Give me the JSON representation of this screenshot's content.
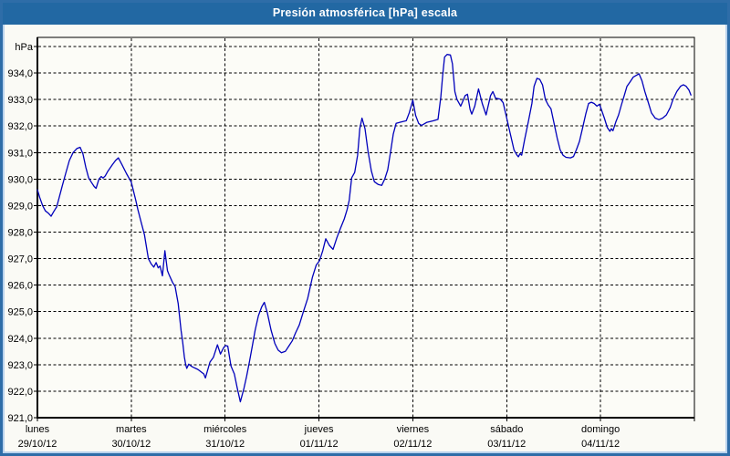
{
  "window": {
    "title": "Presión atmosférica [hPa] escala"
  },
  "colors": {
    "titlebar": "#2268a3",
    "frame": "#2e6da8",
    "lightframe": "#b9d2ec",
    "content_bg": "#fafaf5",
    "plot_bg": "#fcfcf7",
    "grid": "#000000",
    "line": "#0000bb",
    "title_text": "#ffffff",
    "axis_text": "#000000"
  },
  "chart_data": {
    "type": "line",
    "title": "Presión atmosférica [hPa] escala",
    "grid": "dashed",
    "legend": "none",
    "y_axis": {
      "unit_label": "hPa",
      "min": 921,
      "max": 935,
      "step": 1,
      "tick_labels": [
        "921,0",
        "922,0",
        "923,0",
        "924,0",
        "925,0",
        "926,0",
        "927,0",
        "928,0",
        "929,0",
        "930,0",
        "931,0",
        "932,0",
        "933,0",
        "934,0"
      ]
    },
    "x_axis": {
      "days": [
        {
          "name": "lunes",
          "date": "29/10/12"
        },
        {
          "name": "martes",
          "date": "30/10/12"
        },
        {
          "name": "miércoles",
          "date": "31/10/12"
        },
        {
          "name": "jueves",
          "date": "01/11/12"
        },
        {
          "name": "viernes",
          "date": "02/11/12"
        },
        {
          "name": "sábado",
          "date": "03/11/12"
        },
        {
          "name": "domingo",
          "date": "04/11/12"
        }
      ]
    },
    "series": [
      {
        "name": "presion_atmosferica_hPa",
        "color": "#0000bb",
        "points": [
          [
            0.0,
            929.6
          ],
          [
            0.025,
            929.3
          ],
          [
            0.055,
            929.0
          ],
          [
            0.085,
            928.8
          ],
          [
            0.115,
            928.72
          ],
          [
            0.146,
            928.6
          ],
          [
            0.175,
            928.78
          ],
          [
            0.205,
            928.95
          ],
          [
            0.235,
            929.35
          ],
          [
            0.265,
            929.75
          ],
          [
            0.3,
            930.2
          ],
          [
            0.34,
            930.7
          ],
          [
            0.38,
            931.0
          ],
          [
            0.42,
            931.15
          ],
          [
            0.455,
            931.2
          ],
          [
            0.485,
            930.95
          ],
          [
            0.515,
            930.45
          ],
          [
            0.545,
            930.05
          ],
          [
            0.575,
            929.88
          ],
          [
            0.605,
            929.72
          ],
          [
            0.625,
            929.65
          ],
          [
            0.655,
            930.0
          ],
          [
            0.68,
            930.1
          ],
          [
            0.7,
            930.04
          ],
          [
            0.722,
            930.12
          ],
          [
            0.752,
            930.3
          ],
          [
            0.8,
            930.55
          ],
          [
            0.832,
            930.7
          ],
          [
            0.862,
            930.8
          ],
          [
            0.9,
            930.55
          ],
          [
            0.95,
            930.2
          ],
          [
            1.0,
            929.88
          ],
          [
            1.048,
            929.2
          ],
          [
            1.07,
            928.85
          ],
          [
            1.1,
            928.45
          ],
          [
            1.14,
            927.9
          ],
          [
            1.182,
            927.0
          ],
          [
            1.212,
            926.8
          ],
          [
            1.24,
            926.68
          ],
          [
            1.265,
            926.85
          ],
          [
            1.287,
            926.65
          ],
          [
            1.307,
            926.72
          ],
          [
            1.332,
            926.35
          ],
          [
            1.358,
            927.3
          ],
          [
            1.385,
            926.55
          ],
          [
            1.402,
            926.4
          ],
          [
            1.44,
            926.1
          ],
          [
            1.467,
            925.95
          ],
          [
            1.5,
            925.3
          ],
          [
            1.53,
            924.3
          ],
          [
            1.548,
            923.85
          ],
          [
            1.565,
            923.3
          ],
          [
            1.58,
            923.0
          ],
          [
            1.592,
            922.86
          ],
          [
            1.612,
            923.02
          ],
          [
            1.65,
            922.92
          ],
          [
            1.71,
            922.82
          ],
          [
            1.772,
            922.65
          ],
          [
            1.79,
            922.5
          ],
          [
            1.838,
            923.1
          ],
          [
            1.875,
            923.28
          ],
          [
            1.918,
            923.75
          ],
          [
            1.95,
            923.4
          ],
          [
            1.985,
            923.65
          ],
          [
            2.005,
            923.72
          ],
          [
            2.028,
            923.7
          ],
          [
            2.062,
            922.95
          ],
          [
            2.098,
            922.65
          ],
          [
            2.13,
            922.1
          ],
          [
            2.162,
            921.6
          ],
          [
            2.2,
            922.1
          ],
          [
            2.228,
            922.55
          ],
          [
            2.258,
            923.1
          ],
          [
            2.29,
            923.7
          ],
          [
            2.32,
            924.3
          ],
          [
            2.355,
            924.85
          ],
          [
            2.39,
            925.18
          ],
          [
            2.418,
            925.35
          ],
          [
            2.45,
            924.95
          ],
          [
            2.49,
            924.3
          ],
          [
            2.53,
            923.8
          ],
          [
            2.565,
            923.55
          ],
          [
            2.6,
            923.45
          ],
          [
            2.642,
            923.5
          ],
          [
            2.682,
            923.72
          ],
          [
            2.715,
            923.9
          ],
          [
            2.75,
            924.2
          ],
          [
            2.79,
            924.5
          ],
          [
            2.832,
            924.98
          ],
          [
            2.88,
            925.5
          ],
          [
            2.93,
            926.3
          ],
          [
            2.97,
            926.75
          ],
          [
            3.005,
            926.92
          ],
          [
            3.04,
            927.3
          ],
          [
            3.072,
            927.75
          ],
          [
            3.11,
            927.5
          ],
          [
            3.15,
            927.35
          ],
          [
            3.192,
            927.8
          ],
          [
            3.23,
            928.15
          ],
          [
            3.27,
            928.5
          ],
          [
            3.3,
            928.85
          ],
          [
            3.322,
            929.2
          ],
          [
            3.348,
            930.05
          ],
          [
            3.38,
            930.25
          ],
          [
            3.412,
            930.9
          ],
          [
            3.435,
            931.9
          ],
          [
            3.458,
            932.3
          ],
          [
            3.49,
            931.9
          ],
          [
            3.522,
            931.05
          ],
          [
            3.558,
            930.3
          ],
          [
            3.59,
            929.9
          ],
          [
            3.63,
            929.8
          ],
          [
            3.668,
            929.76
          ],
          [
            3.7,
            930.0
          ],
          [
            3.732,
            930.35
          ],
          [
            3.762,
            931.0
          ],
          [
            3.792,
            931.7
          ],
          [
            3.822,
            932.1
          ],
          [
            3.87,
            932.15
          ],
          [
            3.93,
            932.2
          ],
          [
            3.962,
            932.5
          ],
          [
            4.0,
            932.98
          ],
          [
            4.03,
            932.4
          ],
          [
            4.062,
            932.1
          ],
          [
            4.092,
            932.02
          ],
          [
            4.15,
            932.14
          ],
          [
            4.22,
            932.2
          ],
          [
            4.268,
            932.25
          ],
          [
            4.298,
            933.1
          ],
          [
            4.318,
            933.9
          ],
          [
            4.338,
            934.6
          ],
          [
            4.365,
            934.7
          ],
          [
            4.4,
            934.68
          ],
          [
            4.422,
            934.35
          ],
          [
            4.448,
            933.3
          ],
          [
            4.47,
            933.0
          ],
          [
            4.51,
            932.75
          ],
          [
            4.558,
            933.15
          ],
          [
            4.582,
            933.2
          ],
          [
            4.61,
            932.62
          ],
          [
            4.628,
            932.45
          ],
          [
            4.66,
            932.75
          ],
          [
            4.7,
            933.4
          ],
          [
            4.74,
            932.85
          ],
          [
            4.78,
            932.42
          ],
          [
            4.828,
            933.15
          ],
          [
            4.852,
            933.3
          ],
          [
            4.882,
            933.05
          ],
          [
            4.93,
            933.02
          ],
          [
            4.962,
            932.88
          ],
          [
            5.0,
            932.3
          ],
          [
            5.032,
            931.8
          ],
          [
            5.078,
            931.1
          ],
          [
            5.11,
            930.9
          ],
          [
            5.125,
            930.84
          ],
          [
            5.142,
            930.96
          ],
          [
            5.16,
            930.9
          ],
          [
            5.192,
            931.5
          ],
          [
            5.23,
            932.15
          ],
          [
            5.268,
            932.85
          ],
          [
            5.292,
            933.5
          ],
          [
            5.322,
            933.8
          ],
          [
            5.352,
            933.76
          ],
          [
            5.382,
            933.55
          ],
          [
            5.412,
            933.0
          ],
          [
            5.442,
            932.8
          ],
          [
            5.472,
            932.65
          ],
          [
            5.502,
            932.15
          ],
          [
            5.538,
            931.55
          ],
          [
            5.57,
            931.1
          ],
          [
            5.6,
            930.9
          ],
          [
            5.632,
            930.82
          ],
          [
            5.68,
            930.8
          ],
          [
            5.712,
            930.85
          ],
          [
            5.742,
            931.1
          ],
          [
            5.775,
            931.42
          ],
          [
            5.81,
            931.95
          ],
          [
            5.842,
            932.45
          ],
          [
            5.872,
            932.85
          ],
          [
            5.902,
            932.9
          ],
          [
            5.932,
            932.85
          ],
          [
            5.962,
            932.75
          ],
          [
            5.988,
            932.82
          ],
          [
            6.002,
            932.7
          ],
          [
            6.04,
            932.3
          ],
          [
            6.072,
            931.95
          ],
          [
            6.1,
            931.8
          ],
          [
            6.115,
            931.9
          ],
          [
            6.132,
            931.82
          ],
          [
            6.162,
            932.15
          ],
          [
            6.192,
            932.42
          ],
          [
            6.222,
            932.8
          ],
          [
            6.252,
            933.15
          ],
          [
            6.282,
            933.5
          ],
          [
            6.312,
            933.65
          ],
          [
            6.35,
            933.85
          ],
          [
            6.41,
            933.97
          ],
          [
            6.442,
            933.7
          ],
          [
            6.472,
            933.3
          ],
          [
            6.512,
            932.85
          ],
          [
            6.542,
            932.5
          ],
          [
            6.582,
            932.3
          ],
          [
            6.622,
            932.24
          ],
          [
            6.662,
            932.3
          ],
          [
            6.702,
            932.42
          ],
          [
            6.742,
            932.7
          ],
          [
            6.772,
            933.0
          ],
          [
            6.812,
            933.3
          ],
          [
            6.852,
            933.5
          ],
          [
            6.882,
            933.56
          ],
          [
            6.912,
            933.5
          ],
          [
            6.942,
            933.36
          ],
          [
            6.963,
            933.17
          ]
        ]
      }
    ]
  }
}
